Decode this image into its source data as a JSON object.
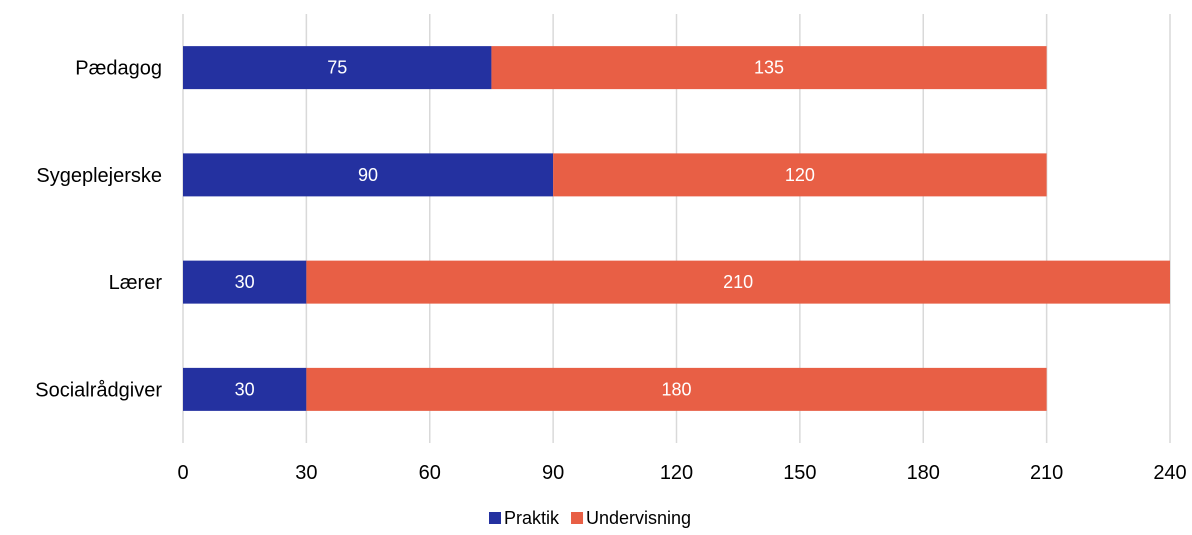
{
  "chart_data": {
    "type": "bar",
    "orientation": "horizontal",
    "stacked": true,
    "categories": [
      "Pædagog",
      "Sygeplejerske",
      "Lærer",
      "Socialrådgiver"
    ],
    "series": [
      {
        "name": "Praktik",
        "values": [
          75,
          90,
          30,
          30
        ],
        "color": "#2431a0"
      },
      {
        "name": "Undervisning",
        "values": [
          135,
          120,
          210,
          180
        ],
        "color": "#e85f45"
      }
    ],
    "xlim": [
      0,
      240
    ],
    "xticks": [
      0,
      30,
      60,
      90,
      120,
      150,
      180,
      210,
      240
    ],
    "grid": true,
    "legend_position": "bottom",
    "data_labels": true
  }
}
